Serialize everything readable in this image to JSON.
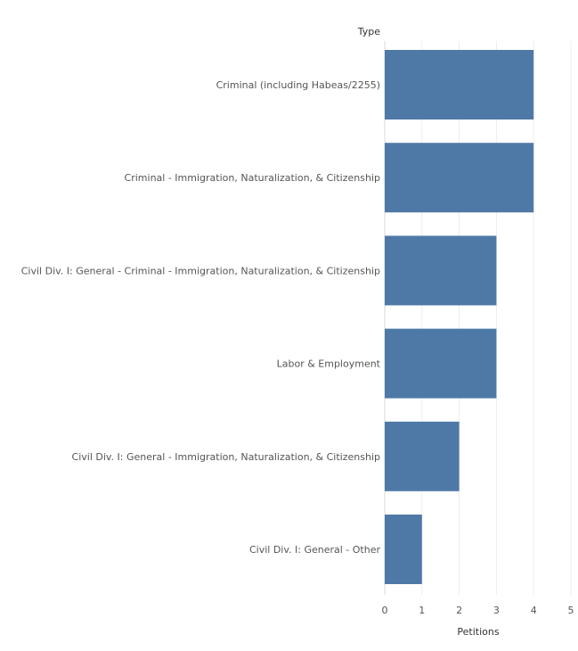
{
  "colors": {
    "bar": "#4e79a7"
  },
  "chart_data": {
    "type": "bar",
    "orientation": "horizontal",
    "category_header": "Type",
    "xlabel": "Petitions",
    "xlim": [
      0,
      5
    ],
    "xticks": [
      0,
      1,
      2,
      3,
      4,
      5
    ],
    "xtick_labels": [
      "0",
      "1",
      "2",
      "3",
      "4",
      "5"
    ],
    "grid": true,
    "categories": [
      "Criminal (including Habeas/2255)",
      "Criminal - Immigration, Naturalization, & Citizenship",
      "Civil Div. I: General - Criminal - Immigration, Naturalization, & Citizenship",
      "Labor & Employment",
      "Civil Div. I: General - Immigration, Naturalization, & Citizenship",
      "Civil Div. I: General - Other"
    ],
    "values": [
      4,
      4,
      3,
      3,
      2,
      1
    ]
  }
}
